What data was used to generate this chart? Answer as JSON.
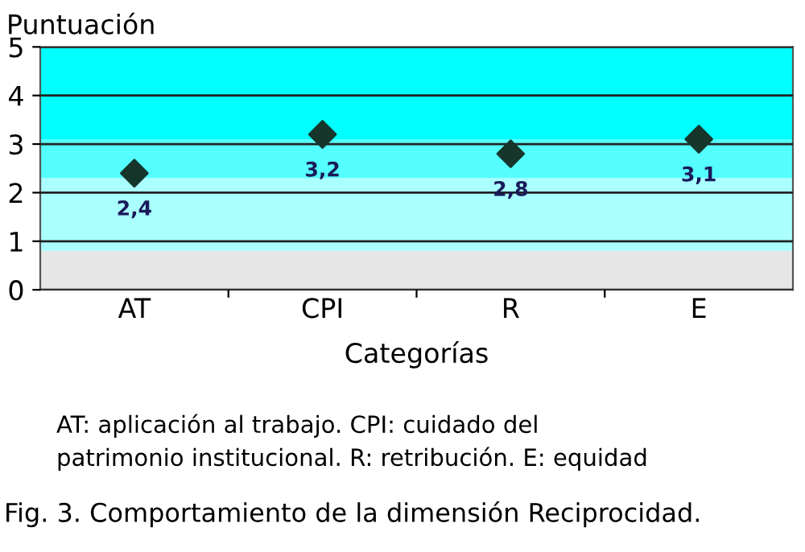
{
  "chart_data": {
    "type": "scatter",
    "ylabel": "Puntuación",
    "xlabel": "Categorías",
    "categories": [
      "AT",
      "CPI",
      "R",
      "E"
    ],
    "values": [
      2.4,
      3.2,
      2.8,
      3.1
    ],
    "value_labels": [
      "2,4",
      "3,2",
      "2,8",
      "3,1"
    ],
    "color": "#16362c",
    "marker": "diamond",
    "ylim": [
      0,
      5
    ],
    "yticks": [
      0,
      1,
      2,
      3,
      4,
      5
    ],
    "grid": "y",
    "bands": [
      {
        "axis": "y",
        "from": 0,
        "to": 0.8,
        "color": "#e6e6e6"
      },
      {
        "axis": "y",
        "from": 0.8,
        "to": 2.3,
        "color": "#aaffff"
      },
      {
        "axis": "y",
        "from": 2.3,
        "to": 3.1,
        "color": "#55ffff"
      },
      {
        "axis": "y",
        "from": 3.1,
        "to": 5,
        "color": "#00ffff"
      }
    ],
    "annotations": [
      "AT: aplicación al trabajo. CPI: cuidado del\npatrimonio institucional. R: retribución. E: equidad",
      "Fig. 3. Comportamiento de la dimensión Reciprocidad."
    ]
  }
}
